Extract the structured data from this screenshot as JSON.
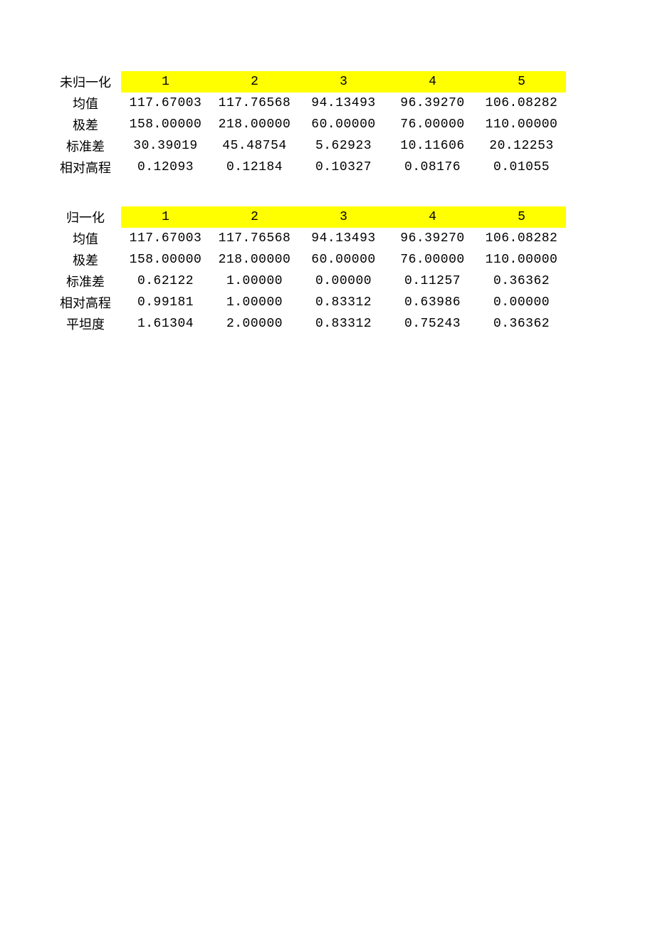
{
  "colors": {
    "header_bg": "#ffff00",
    "text": "#000000",
    "page_bg": "#ffffff"
  },
  "fontsize": 18,
  "table1": {
    "title": "未归一化",
    "columns": [
      "1",
      "2",
      "3",
      "4",
      "5"
    ],
    "rows": [
      {
        "label": "均值",
        "values": [
          "117.67003",
          "117.76568",
          "94.13493",
          "96.39270",
          "106.08282"
        ]
      },
      {
        "label": "极差",
        "values": [
          "158.00000",
          "218.00000",
          "60.00000",
          "76.00000",
          "110.00000"
        ]
      },
      {
        "label": "标准差",
        "values": [
          "30.39019",
          "45.48754",
          "5.62923",
          "10.11606",
          "20.12253"
        ]
      },
      {
        "label": "相对高程",
        "values": [
          "0.12093",
          "0.12184",
          "0.10327",
          "0.08176",
          "0.01055"
        ]
      }
    ]
  },
  "table2": {
    "title": "归一化",
    "columns": [
      "1",
      "2",
      "3",
      "4",
      "5"
    ],
    "rows": [
      {
        "label": "均值",
        "values": [
          "117.67003",
          "117.76568",
          "94.13493",
          "96.39270",
          "106.08282"
        ]
      },
      {
        "label": "极差",
        "values": [
          "158.00000",
          "218.00000",
          "60.00000",
          "76.00000",
          "110.00000"
        ]
      },
      {
        "label": "标准差",
        "values": [
          "0.62122",
          "1.00000",
          "0.00000",
          "0.11257",
          "0.36362"
        ]
      },
      {
        "label": "相对高程",
        "values": [
          "0.99181",
          "1.00000",
          "0.83312",
          "0.63986",
          "0.00000"
        ]
      },
      {
        "label": "平坦度",
        "values": [
          "1.61304",
          "2.00000",
          "0.83312",
          "0.75243",
          "0.36362"
        ]
      }
    ]
  }
}
